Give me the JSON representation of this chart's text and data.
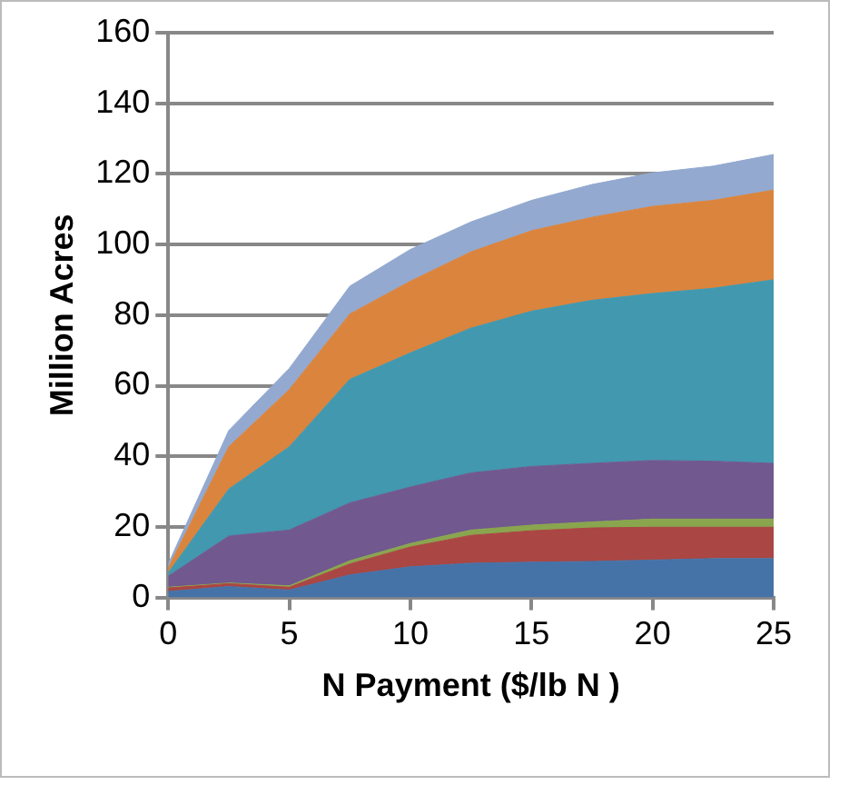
{
  "chart_data": {
    "type": "area",
    "stacked": true,
    "xlabel": "N Payment ($/lb N )",
    "ylabel": "Million Acres",
    "x": [
      0,
      2.5,
      5,
      7.5,
      10,
      12.5,
      15,
      17.5,
      20,
      22.5,
      25
    ],
    "series": [
      {
        "color": "#4572a7",
        "values": [
          1.7,
          3.1,
          2.1,
          6.4,
          8.7,
          9.7,
          10,
          10.2,
          10.6,
          11,
          11
        ]
      },
      {
        "color": "#aa4643",
        "values": [
          1,
          0.8,
          0.8,
          3.1,
          5.6,
          7.9,
          8.9,
          9.5,
          9.3,
          8.9,
          8.9
        ]
      },
      {
        "color": "#89a54e",
        "values": [
          0.2,
          0.2,
          0.4,
          0.9,
          1,
          1.5,
          1.6,
          1.7,
          2.3,
          2.3,
          2.3
        ]
      },
      {
        "color": "#71588f",
        "values": [
          3.1,
          13.3,
          15.8,
          16.4,
          16,
          16.2,
          16.6,
          16.6,
          16.6,
          16.4,
          15.8
        ]
      },
      {
        "color": "#4198af",
        "values": [
          1,
          13.3,
          23.6,
          35,
          38,
          41,
          44,
          46.2,
          47.3,
          49,
          52
        ]
      },
      {
        "color": "#db843d",
        "values": [
          1.3,
          12,
          16.2,
          18.5,
          20.3,
          21.6,
          22.8,
          23.5,
          24.7,
          24.9,
          25.4
        ]
      },
      {
        "color": "#93a9cf",
        "values": [
          1.2,
          4.6,
          6,
          7.9,
          9,
          8.5,
          8.6,
          9.3,
          9.5,
          9.7,
          10.1
        ]
      }
    ],
    "xlim": [
      0,
      25
    ],
    "xticks": [
      0,
      5,
      10,
      15,
      20,
      25
    ],
    "ylim": [
      0,
      160
    ],
    "yticks": [
      0,
      20,
      40,
      60,
      80,
      100,
      120,
      140,
      160
    ],
    "grid": "y",
    "legend": false
  }
}
